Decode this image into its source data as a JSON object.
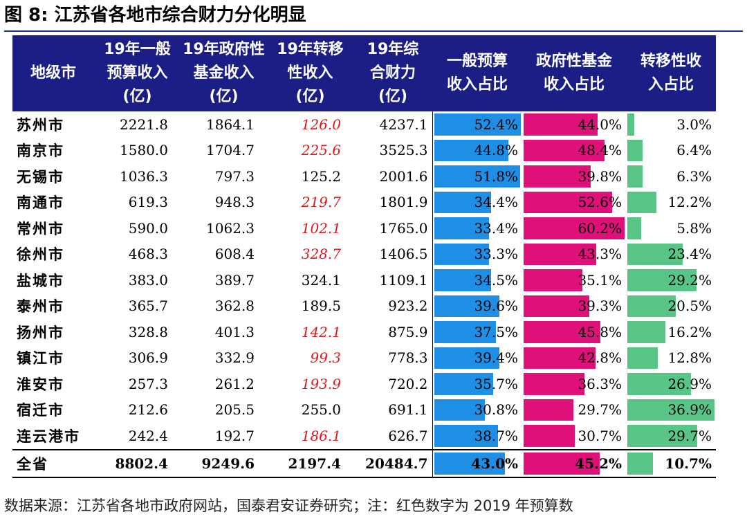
{
  "title": "图 8:  江苏省各地市综合财力分化明显",
  "source": "数据来源：江苏省各地市政府网站，国泰君安证券研究；注：红色数字为 2019 年预算数",
  "headers": [
    [
      "地级市"
    ],
    [
      "19年一般",
      "预算收入",
      "(亿)"
    ],
    [
      "19年政府性",
      "基金收入",
      "(亿)"
    ],
    [
      "19年转移",
      "性收入",
      "(亿)"
    ],
    [
      "19年综",
      "合财力",
      "(亿)"
    ],
    [
      "一般预算",
      "收入占比"
    ],
    [
      "政府性基金",
      "收入占比"
    ],
    [
      "转移性收",
      "入占比"
    ]
  ],
  "bar_colors": {
    "general": "#1f8fe5",
    "fund": "#e0107a",
    "transfer": "#58c586"
  },
  "bar_max": {
    "general": 52.4,
    "fund": 60.2,
    "transfer": 36.9
  },
  "rows": [
    {
      "city": "苏州市",
      "general": "2221.8",
      "fund": "1864.1",
      "transfer": "126.0",
      "transfer_red": true,
      "total": "4237.1",
      "p_general": "52.4%",
      "p_fund": "44.0%",
      "p_transfer": "3.0%"
    },
    {
      "city": "南京市",
      "general": "1580.0",
      "fund": "1704.7",
      "transfer": "225.6",
      "transfer_red": true,
      "total": "3525.3",
      "p_general": "44.8%",
      "p_fund": "48.4%",
      "p_transfer": "6.4%"
    },
    {
      "city": "无锡市",
      "general": "1036.3",
      "fund": "797.3",
      "transfer": "125.2",
      "transfer_red": false,
      "total": "2001.6",
      "p_general": "51.8%",
      "p_fund": "39.8%",
      "p_transfer": "6.3%"
    },
    {
      "city": "南通市",
      "general": "619.3",
      "fund": "948.3",
      "transfer": "219.7",
      "transfer_red": true,
      "total": "1801.9",
      "p_general": "34.4%",
      "p_fund": "52.6%",
      "p_transfer": "12.2%"
    },
    {
      "city": "常州市",
      "general": "590.0",
      "fund": "1062.3",
      "transfer": "102.1",
      "transfer_red": true,
      "total": "1765.0",
      "p_general": "33.4%",
      "p_fund": "60.2%",
      "p_transfer": "5.8%"
    },
    {
      "city": "徐州市",
      "general": "468.3",
      "fund": "608.4",
      "transfer": "328.7",
      "transfer_red": true,
      "total": "1406.5",
      "p_general": "33.3%",
      "p_fund": "43.3%",
      "p_transfer": "23.4%"
    },
    {
      "city": "盐城市",
      "general": "383.0",
      "fund": "389.7",
      "transfer": "324.1",
      "transfer_red": false,
      "total": "1109.1",
      "p_general": "34.5%",
      "p_fund": "35.1%",
      "p_transfer": "29.2%"
    },
    {
      "city": "泰州市",
      "general": "365.7",
      "fund": "362.8",
      "transfer": "189.5",
      "transfer_red": false,
      "total": "923.2",
      "p_general": "39.6%",
      "p_fund": "39.3%",
      "p_transfer": "20.5%"
    },
    {
      "city": "扬州市",
      "general": "328.8",
      "fund": "401.3",
      "transfer": "142.1",
      "transfer_red": true,
      "total": "875.9",
      "p_general": "37.5%",
      "p_fund": "45.8%",
      "p_transfer": "16.2%"
    },
    {
      "city": "镇江市",
      "general": "306.9",
      "fund": "332.9",
      "transfer": "99.3",
      "transfer_red": true,
      "total": "778.3",
      "p_general": "39.4%",
      "p_fund": "42.8%",
      "p_transfer": "12.8%"
    },
    {
      "city": "淮安市",
      "general": "257.3",
      "fund": "261.2",
      "transfer": "193.9",
      "transfer_red": true,
      "total": "720.2",
      "p_general": "35.7%",
      "p_fund": "36.3%",
      "p_transfer": "26.9%"
    },
    {
      "city": "宿迁市",
      "general": "212.6",
      "fund": "205.5",
      "transfer": "255.0",
      "transfer_red": false,
      "total": "691.1",
      "p_general": "30.8%",
      "p_fund": "29.7%",
      "p_transfer": "36.9%"
    },
    {
      "city": "连云港市",
      "general": "242.4",
      "fund": "192.7",
      "transfer": "186.1",
      "transfer_red": true,
      "total": "626.7",
      "p_general": "38.7%",
      "p_fund": "30.7%",
      "p_transfer": "29.7%"
    }
  ],
  "total_row": {
    "city": "全省",
    "general": "8802.4",
    "fund": "9249.6",
    "transfer": "2197.4",
    "total": "20484.7",
    "p_general": "43.0%",
    "p_fund": "45.2%",
    "p_transfer": "10.7%"
  }
}
